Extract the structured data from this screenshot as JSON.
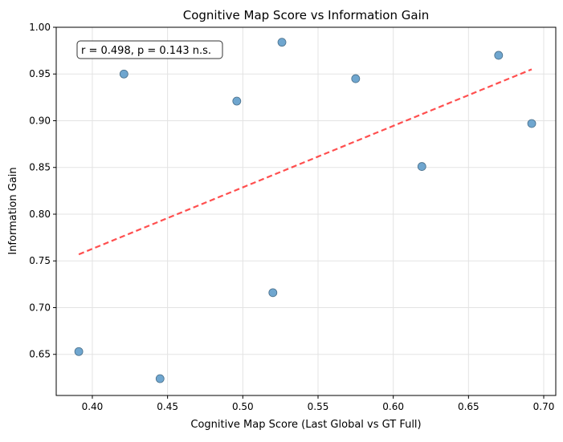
{
  "chart_data": {
    "type": "scatter",
    "title": "Cognitive Map Score vs Information Gain",
    "xlabel": "Cognitive Map Score (Last Global vs GT Full)",
    "ylabel": "Information Gain",
    "xlim": [
      0.376,
      0.708
    ],
    "ylim": [
      0.606,
      1.0
    ],
    "xticks": [
      0.4,
      0.45,
      0.5,
      0.55,
      0.6,
      0.65,
      0.7
    ],
    "xtick_labels": [
      "0.40",
      "0.45",
      "0.50",
      "0.55",
      "0.60",
      "0.65",
      "0.70"
    ],
    "yticks": [
      0.65,
      0.7,
      0.75,
      0.8,
      0.85,
      0.9,
      0.95,
      1.0
    ],
    "ytick_labels": [
      "0.65",
      "0.70",
      "0.75",
      "0.80",
      "0.85",
      "0.90",
      "0.95",
      "1.00"
    ],
    "grid": true,
    "points": [
      {
        "x": 0.391,
        "y": 0.653
      },
      {
        "x": 0.421,
        "y": 0.95
      },
      {
        "x": 0.445,
        "y": 0.624
      },
      {
        "x": 0.496,
        "y": 0.921
      },
      {
        "x": 0.52,
        "y": 0.716
      },
      {
        "x": 0.526,
        "y": 0.984
      },
      {
        "x": 0.575,
        "y": 0.945
      },
      {
        "x": 0.619,
        "y": 0.851
      },
      {
        "x": 0.67,
        "y": 0.97
      },
      {
        "x": 0.692,
        "y": 0.897
      }
    ],
    "trendline": {
      "x": [
        0.391,
        0.692
      ],
      "y": [
        0.757,
        0.955
      ],
      "style": "dashed"
    },
    "annotation": "r = 0.498, p = 0.143 n.s.",
    "colors": {
      "points": "#6fa6cf",
      "point_edge": "#4a6f8a",
      "trendline": "#ff3030"
    }
  }
}
